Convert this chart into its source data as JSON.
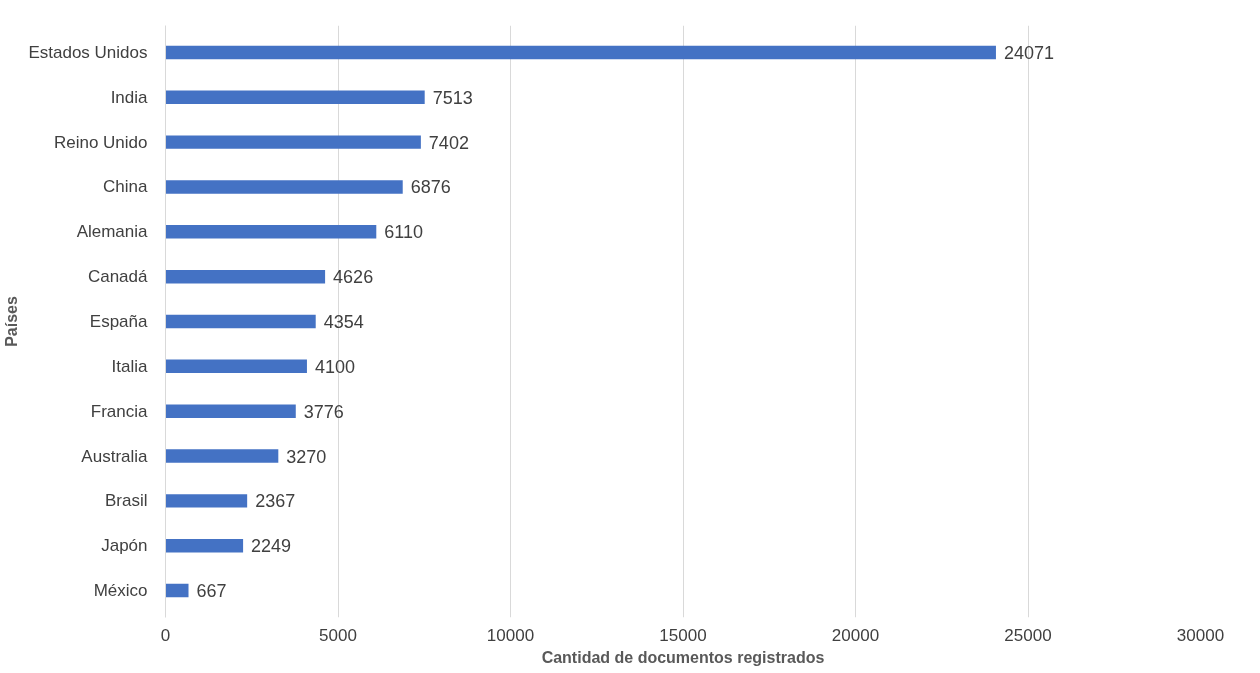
{
  "chart_data": {
    "type": "bar",
    "orientation": "horizontal",
    "xlabel": "Cantidad de documentos registrados",
    "ylabel": "Países",
    "categories": [
      "Estados Unidos",
      "India",
      "Reino Unido",
      "China",
      "Alemania",
      "Canadá",
      "España",
      "Italia",
      "Francia",
      "Australia",
      "Brasil",
      "Japón",
      "México"
    ],
    "values": [
      24071,
      7513,
      7402,
      6876,
      6110,
      4626,
      4354,
      4100,
      3776,
      3270,
      2367,
      2249,
      667
    ],
    "color": "#4472c4",
    "xlim": [
      0,
      30000
    ],
    "xticks": [
      0,
      5000,
      10000,
      15000,
      20000,
      25000,
      30000
    ],
    "grid": "x",
    "data_labels": true
  }
}
